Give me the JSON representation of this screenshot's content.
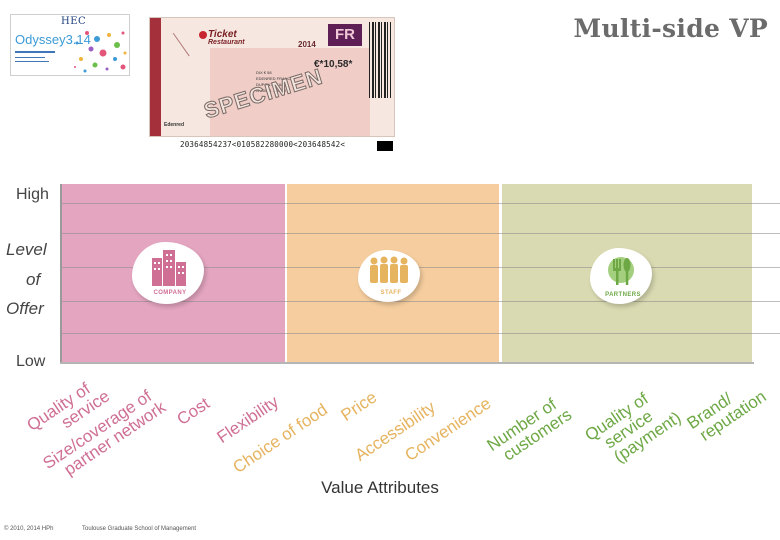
{
  "slide": {
    "title": "Multi-side VP"
  },
  "logo": {
    "hec": "HEC",
    "name": "Odyssey3.14"
  },
  "ticket": {
    "brand_line1": "Ticket",
    "brand_line2": "Restaurant",
    "year": "2014",
    "country": "FR",
    "amount": "€*10,58*",
    "specimen": "SPECIMEN",
    "info_line1": "DIX € 58",
    "info_line2": "EDENRED FRANCE",
    "info_line3": "DUPONT JEAN",
    "info_line4": "N°00001 - 20 TR",
    "issuer": "Edenred",
    "machine_code": "20364854237<010582280000<203648542<"
  },
  "chart": {
    "y_high": "High",
    "y_title_lines": [
      "Level",
      "of",
      "Offer"
    ],
    "y_low": "Low",
    "x_title": "Value Attributes"
  },
  "groups": [
    {
      "label": "COMPANY",
      "color": "#cf6f94",
      "icon": "buildings-icon",
      "attributes": [
        "Quality of service",
        "Size/coverage of partner network",
        "Cost",
        "Flexibility"
      ]
    },
    {
      "label": "STAFF",
      "color": "#e6b35f",
      "icon": "people-icon",
      "attributes": [
        "Choice of food",
        "Price",
        "Accessibility",
        "Convenience"
      ]
    },
    {
      "label": "PARTNERS",
      "color": "#6ea845",
      "icon": "cutlery-icon",
      "attributes": [
        "Number of customers",
        "Quality of service (payment)",
        "Brand/ reputation"
      ]
    }
  ],
  "attribute_lines": {
    "company_0": [
      "Quality of",
      "service"
    ],
    "company_1": [
      "Size/coverage of",
      "partner network"
    ],
    "company_2": [
      "Cost"
    ],
    "company_3": [
      "Flexibility"
    ],
    "staff_0": [
      "Choice of food"
    ],
    "staff_1": [
      "Price"
    ],
    "staff_2": [
      "Accessibility"
    ],
    "staff_3": [
      "Convenience"
    ],
    "partners_0": [
      "Number of",
      "customers"
    ],
    "partners_1": [
      "Quality of",
      "service",
      "(payment)"
    ],
    "partners_2": [
      "Brand/",
      "reputation"
    ]
  },
  "footer": {
    "copyright": "© 2010, 2014 HPh",
    "school": "Toulouse Graduate School of Management"
  }
}
